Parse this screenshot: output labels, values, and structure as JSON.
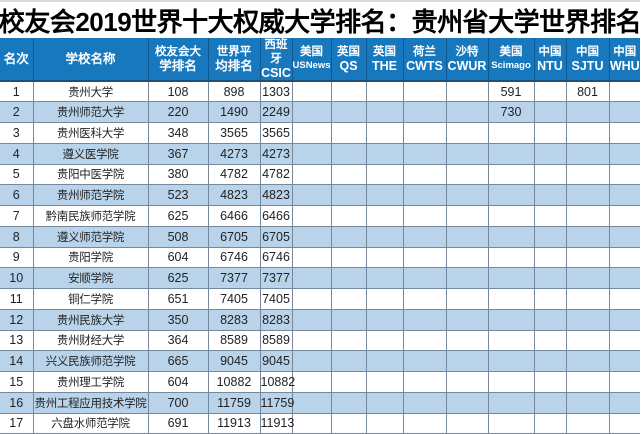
{
  "title": "校友会2019世界十大权威大学排名：贵州省大学世界排名",
  "colors": {
    "header_bg": "#1878be",
    "header_text": "#ffffff",
    "row_bg": "#ffffff",
    "row_alt_bg": "#b9d4ea",
    "grid_border": "#76899c",
    "title_text": "#000000"
  },
  "chart_data": {
    "type": "table",
    "title": "校友会2019世界十大权威大学排名：贵州省大学世界排名",
    "columns": [
      {
        "id": "rank",
        "lines": [
          "名次"
        ]
      },
      {
        "id": "school",
        "lines": [
          "学校名称"
        ]
      },
      {
        "id": "xyh_rank",
        "lines": [
          "校友会大",
          "学排名"
        ]
      },
      {
        "id": "world_avg",
        "lines": [
          "世界平",
          "均排名"
        ]
      },
      {
        "id": "csic",
        "lines": [
          "西班牙",
          "CSIC"
        ]
      },
      {
        "id": "usnews",
        "lines": [
          "美国",
          "USNews"
        ]
      },
      {
        "id": "qs",
        "lines": [
          "英国",
          "QS"
        ]
      },
      {
        "id": "the",
        "lines": [
          "英国",
          "THE"
        ]
      },
      {
        "id": "cwts",
        "lines": [
          "荷兰",
          "CWTS"
        ]
      },
      {
        "id": "cwur",
        "lines": [
          "沙特",
          "CWUR"
        ]
      },
      {
        "id": "scimago",
        "lines": [
          "美国",
          "Scimago"
        ]
      },
      {
        "id": "ntu",
        "lines": [
          "中国",
          "NTU"
        ]
      },
      {
        "id": "sjtu",
        "lines": [
          "中国",
          "SJTU"
        ]
      },
      {
        "id": "whu",
        "lines": [
          "中国",
          "WHU"
        ]
      }
    ],
    "rows": [
      {
        "rank": "1",
        "school": "贵州大学",
        "values": [
          "108",
          "898",
          "1303",
          "",
          "",
          "",
          "",
          "",
          "591",
          "",
          "801",
          ""
        ]
      },
      {
        "rank": "2",
        "school": "贵州师范大学",
        "values": [
          "220",
          "1490",
          "2249",
          "",
          "",
          "",
          "",
          "",
          "730",
          "",
          "",
          ""
        ]
      },
      {
        "rank": "3",
        "school": "贵州医科大学",
        "values": [
          "348",
          "3565",
          "3565",
          "",
          "",
          "",
          "",
          "",
          "",
          "",
          "",
          ""
        ]
      },
      {
        "rank": "4",
        "school": "遵义医学院",
        "values": [
          "367",
          "4273",
          "4273",
          "",
          "",
          "",
          "",
          "",
          "",
          "",
          "",
          ""
        ]
      },
      {
        "rank": "5",
        "school": "贵阳中医学院",
        "values": [
          "380",
          "4782",
          "4782",
          "",
          "",
          "",
          "",
          "",
          "",
          "",
          "",
          ""
        ]
      },
      {
        "rank": "6",
        "school": "贵州师范学院",
        "values": [
          "523",
          "4823",
          "4823",
          "",
          "",
          "",
          "",
          "",
          "",
          "",
          "",
          ""
        ]
      },
      {
        "rank": "7",
        "school": "黔南民族师范学院",
        "values": [
          "625",
          "6466",
          "6466",
          "",
          "",
          "",
          "",
          "",
          "",
          "",
          "",
          ""
        ]
      },
      {
        "rank": "8",
        "school": "遵义师范学院",
        "values": [
          "508",
          "6705",
          "6705",
          "",
          "",
          "",
          "",
          "",
          "",
          "",
          "",
          ""
        ]
      },
      {
        "rank": "9",
        "school": "贵阳学院",
        "values": [
          "604",
          "6746",
          "6746",
          "",
          "",
          "",
          "",
          "",
          "",
          "",
          "",
          ""
        ]
      },
      {
        "rank": "10",
        "school": "安顺学院",
        "values": [
          "625",
          "7377",
          "7377",
          "",
          "",
          "",
          "",
          "",
          "",
          "",
          "",
          ""
        ]
      },
      {
        "rank": "11",
        "school": "铜仁学院",
        "values": [
          "651",
          "7405",
          "7405",
          "",
          "",
          "",
          "",
          "",
          "",
          "",
          "",
          ""
        ]
      },
      {
        "rank": "12",
        "school": "贵州民族大学",
        "values": [
          "350",
          "8283",
          "8283",
          "",
          "",
          "",
          "",
          "",
          "",
          "",
          "",
          ""
        ]
      },
      {
        "rank": "13",
        "school": "贵州财经大学",
        "values": [
          "364",
          "8589",
          "8589",
          "",
          "",
          "",
          "",
          "",
          "",
          "",
          "",
          ""
        ]
      },
      {
        "rank": "14",
        "school": "兴义民族师范学院",
        "values": [
          "665",
          "9045",
          "9045",
          "",
          "",
          "",
          "",
          "",
          "",
          "",
          "",
          ""
        ]
      },
      {
        "rank": "15",
        "school": "贵州理工学院",
        "values": [
          "604",
          "10882",
          "10882",
          "",
          "",
          "",
          "",
          "",
          "",
          "",
          "",
          ""
        ]
      },
      {
        "rank": "16",
        "school": "贵州工程应用技术学院",
        "values": [
          "700",
          "11759",
          "11759",
          "",
          "",
          "",
          "",
          "",
          "",
          "",
          "",
          ""
        ]
      },
      {
        "rank": "17",
        "school": "六盘水师范学院",
        "values": [
          "691",
          "11913",
          "11913",
          "",
          "",
          "",
          "",
          "",
          "",
          "",
          "",
          ""
        ]
      }
    ]
  }
}
